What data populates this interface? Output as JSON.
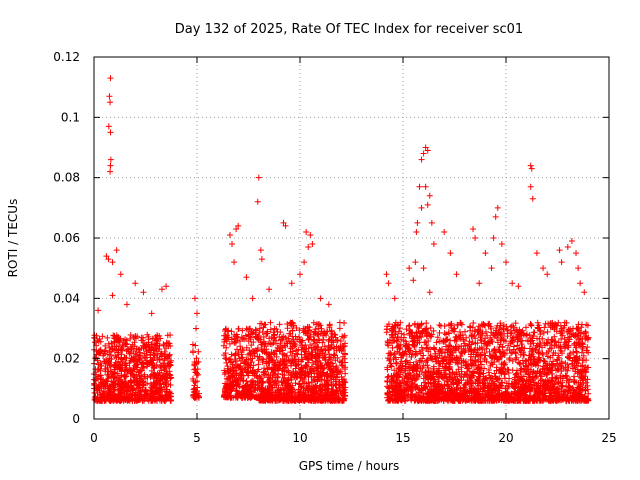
{
  "chart_data": {
    "type": "scatter",
    "title": "Day 132 of 2025, Rate Of TEC Index for receiver sc01",
    "xlabel": "GPS time / hours",
    "ylabel": "ROTI / TECUs",
    "xlim": [
      0,
      25
    ],
    "ylim": [
      0,
      0.12
    ],
    "x_ticks": [
      0,
      5,
      10,
      15,
      20,
      25
    ],
    "x_tick_labels": [
      "0",
      "5",
      "10",
      "15",
      "20",
      "25"
    ],
    "y_ticks": [
      0,
      0.02,
      0.04,
      0.06,
      0.08,
      0.1,
      0.12
    ],
    "y_tick_labels": [
      "0",
      "0.02",
      "0.04",
      "0.06",
      "0.08",
      "0.1",
      "0.12"
    ],
    "grid": true,
    "marker": "+",
    "color": "#ff0000",
    "series": [
      {
        "name": "sc01",
        "points": [
          [
            0.8,
            0.113
          ],
          [
            0.75,
            0.107
          ],
          [
            0.78,
            0.105
          ],
          [
            0.72,
            0.097
          ],
          [
            0.8,
            0.095
          ],
          [
            0.82,
            0.086
          ],
          [
            0.8,
            0.084
          ],
          [
            0.78,
            0.082
          ],
          [
            0.6,
            0.054
          ],
          [
            0.7,
            0.053
          ],
          [
            0.9,
            0.052
          ],
          [
            1.1,
            0.056
          ],
          [
            1.3,
            0.048
          ],
          [
            2.0,
            0.045
          ],
          [
            2.4,
            0.042
          ],
          [
            3.3,
            0.043
          ],
          [
            3.5,
            0.044
          ],
          [
            0.2,
            0.036
          ],
          [
            0.9,
            0.041
          ],
          [
            1.6,
            0.038
          ],
          [
            2.8,
            0.035
          ],
          [
            4.9,
            0.04
          ],
          [
            5.0,
            0.035
          ],
          [
            4.95,
            0.03
          ],
          [
            6.6,
            0.061
          ],
          [
            6.9,
            0.063
          ],
          [
            7.0,
            0.064
          ],
          [
            6.7,
            0.058
          ],
          [
            6.8,
            0.052
          ],
          [
            8.0,
            0.08
          ],
          [
            7.95,
            0.072
          ],
          [
            8.1,
            0.056
          ],
          [
            8.15,
            0.053
          ],
          [
            7.4,
            0.047
          ],
          [
            7.7,
            0.04
          ],
          [
            8.5,
            0.043
          ],
          [
            9.2,
            0.065
          ],
          [
            9.3,
            0.064
          ],
          [
            9.6,
            0.045
          ],
          [
            10.3,
            0.062
          ],
          [
            10.5,
            0.061
          ],
          [
            10.6,
            0.058
          ],
          [
            10.4,
            0.057
          ],
          [
            10.2,
            0.052
          ],
          [
            10.0,
            0.048
          ],
          [
            11.0,
            0.04
          ],
          [
            11.4,
            0.038
          ],
          [
            14.2,
            0.048
          ],
          [
            14.3,
            0.045
          ],
          [
            14.6,
            0.04
          ],
          [
            15.3,
            0.05
          ],
          [
            15.5,
            0.046
          ],
          [
            15.6,
            0.052
          ],
          [
            15.8,
            0.077
          ],
          [
            15.9,
            0.07
          ],
          [
            15.7,
            0.065
          ],
          [
            15.65,
            0.062
          ],
          [
            16.0,
            0.088
          ],
          [
            16.1,
            0.09
          ],
          [
            16.2,
            0.089
          ],
          [
            15.9,
            0.086
          ],
          [
            16.1,
            0.077
          ],
          [
            16.3,
            0.074
          ],
          [
            16.2,
            0.071
          ],
          [
            16.4,
            0.065
          ],
          [
            16.5,
            0.058
          ],
          [
            16.0,
            0.05
          ],
          [
            16.3,
            0.042
          ],
          [
            17.0,
            0.062
          ],
          [
            17.3,
            0.055
          ],
          [
            17.6,
            0.048
          ],
          [
            18.4,
            0.063
          ],
          [
            18.5,
            0.06
          ],
          [
            18.7,
            0.045
          ],
          [
            19.0,
            0.055
          ],
          [
            19.3,
            0.05
          ],
          [
            19.5,
            0.067
          ],
          [
            19.6,
            0.07
          ],
          [
            19.4,
            0.06
          ],
          [
            19.8,
            0.058
          ],
          [
            20.0,
            0.052
          ],
          [
            20.3,
            0.045
          ],
          [
            20.6,
            0.044
          ],
          [
            21.2,
            0.084
          ],
          [
            21.25,
            0.083
          ],
          [
            21.2,
            0.077
          ],
          [
            21.3,
            0.073
          ],
          [
            21.5,
            0.055
          ],
          [
            21.8,
            0.05
          ],
          [
            22.0,
            0.048
          ],
          [
            22.6,
            0.056
          ],
          [
            22.7,
            0.052
          ],
          [
            23.0,
            0.057
          ],
          [
            23.2,
            0.059
          ],
          [
            23.4,
            0.055
          ],
          [
            23.5,
            0.05
          ],
          [
            23.6,
            0.045
          ],
          [
            23.8,
            0.042
          ]
        ]
      }
    ],
    "dense_clusters": [
      {
        "xrange": [
          0.0,
          3.75
        ],
        "ymin": 0.003,
        "ymax": 0.028,
        "count": 900
      },
      {
        "xrange": [
          4.8,
          5.1
        ],
        "ymin": 0.004,
        "ymax": 0.025,
        "count": 50
      },
      {
        "xrange": [
          6.3,
          8.0
        ],
        "ymin": 0.004,
        "ymax": 0.03,
        "count": 380
      },
      {
        "xrange": [
          8.0,
          12.2
        ],
        "ymin": 0.003,
        "ymax": 0.032,
        "count": 1100
      },
      {
        "xrange": [
          14.2,
          24.0
        ],
        "ymin": 0.003,
        "ymax": 0.032,
        "count": 2400
      }
    ]
  }
}
